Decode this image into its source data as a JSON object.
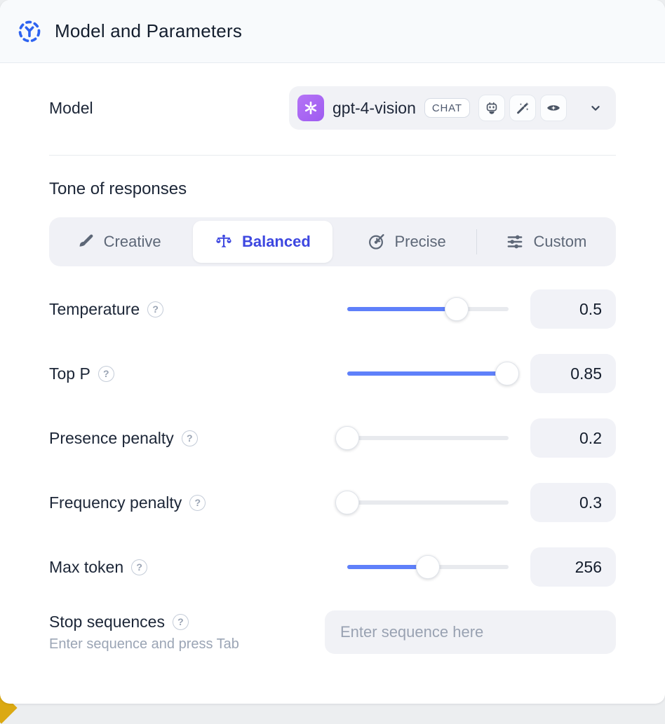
{
  "header": {
    "title": "Model and Parameters"
  },
  "model_row": {
    "label": "Model",
    "selected_model": "gpt-4-vision",
    "type_badge": "CHAT",
    "capability_icons": [
      "robot",
      "wand-sparkles",
      "eye-sparkle"
    ]
  },
  "tone": {
    "heading": "Tone of responses",
    "options": [
      {
        "label": "Creative",
        "icon": "brush",
        "selected": false
      },
      {
        "label": "Balanced",
        "icon": "balance-scale",
        "selected": true
      },
      {
        "label": "Precise",
        "icon": "target-arrow",
        "selected": false
      },
      {
        "label": "Custom",
        "icon": "sliders",
        "selected": false
      }
    ]
  },
  "parameters": [
    {
      "label": "Temperature",
      "value": "0.5",
      "fill_pct": 68
    },
    {
      "label": "Top P",
      "value": "0.85",
      "fill_pct": 99
    },
    {
      "label": "Presence penalty",
      "value": "0.2",
      "fill_pct": 0
    },
    {
      "label": "Frequency penalty",
      "value": "0.3",
      "fill_pct": 0
    },
    {
      "label": "Max token",
      "value": "256",
      "fill_pct": 50
    }
  ],
  "stop_sequences": {
    "label": "Stop sequences",
    "hint": "Enter sequence and press Tab",
    "placeholder": "Enter sequence here"
  },
  "colors": {
    "accent_blue": "#2e63f0",
    "slider_blue": "#5f80fa",
    "selected_tab_blue": "#3d47e0",
    "avatar_purple": "#a867f2",
    "panel_gray": "#f1f2f6"
  }
}
